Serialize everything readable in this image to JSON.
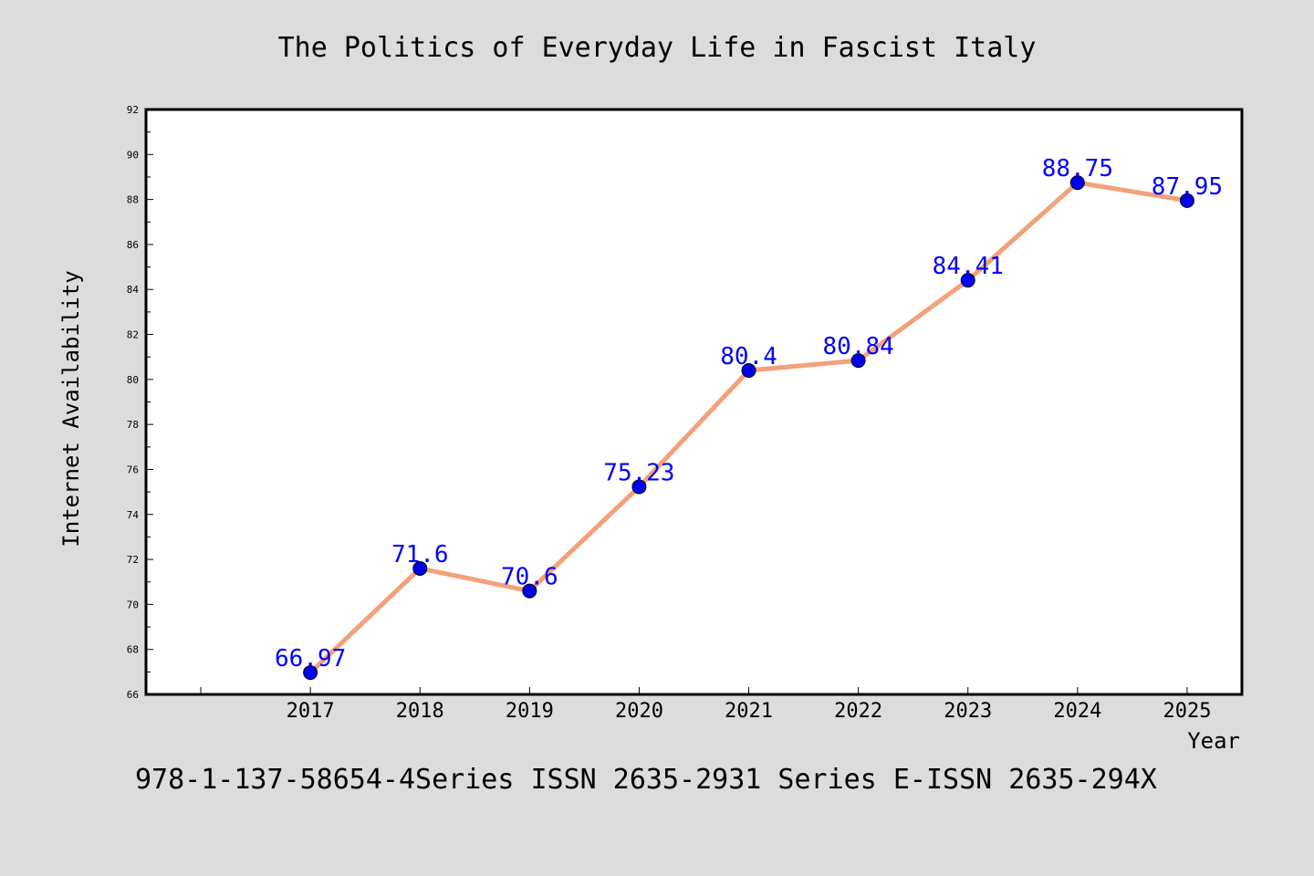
{
  "chart_data": {
    "type": "line",
    "title": "The Politics of Everyday Life in Fascist Italy",
    "xlabel": "Year",
    "ylabel": "Internet Availability",
    "footer": "978-1-137-58654-4Series ISSN 2635-2931 Series E-ISSN 2635-294X",
    "x": [
      "2017",
      "2018",
      "2019",
      "2020",
      "2021",
      "2022",
      "2023",
      "2024",
      "2025"
    ],
    "values": [
      66.97,
      71.6,
      70.6,
      75.23,
      80.4,
      80.84,
      84.41,
      88.75,
      87.95
    ],
    "data_labels": [
      "66.97",
      "71.6",
      "70.6",
      "75.23",
      "80.4",
      "80.84",
      "84.41",
      "88.75",
      "87.95"
    ],
    "ylim": [
      66,
      92
    ],
    "yticks": [
      66,
      68,
      70,
      72,
      74,
      76,
      78,
      80,
      82,
      84,
      86,
      88,
      90,
      92
    ],
    "xlim": [
      2015.5,
      2025.5
    ],
    "grid": false,
    "legend": "none",
    "line_color": "#f4a07a",
    "marker_color": "#0000ee",
    "label_color": "#0000ff",
    "background": "#dcdcdc"
  }
}
